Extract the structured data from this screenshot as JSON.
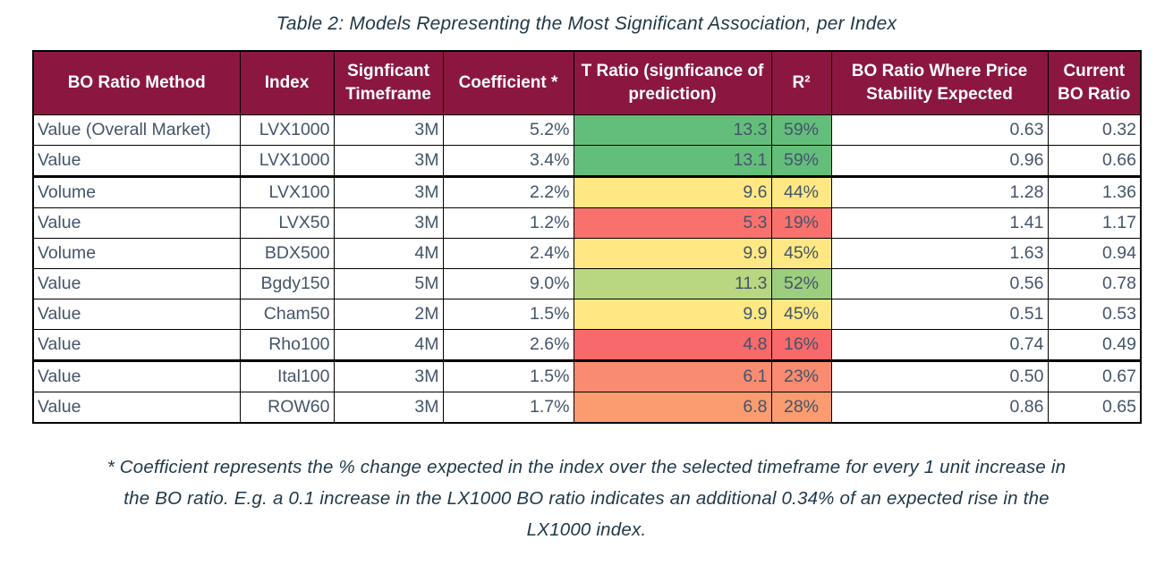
{
  "title": "Table 2: Models Representing the Most Significant Association, per Index",
  "footnote": {
    "line1": "* Coefficient represents the % change expected in the index over the selected timeframe for every 1 unit increase in",
    "line2": "the BO ratio. E.g. a 0.1 increase in the LX1000 BO ratio indicates an additional 0.34% of an expected rise in the",
    "line3": "LX1000 index."
  },
  "colors": {
    "header_bg": "#8b1740",
    "header_text": "#ffffff",
    "body_text": "#44546a",
    "title_text": "#1f3747",
    "scale_green": "#63be7b",
    "scale_yellow": "#ffe883",
    "scale_red": "#f8696b"
  },
  "table": {
    "columns": [
      {
        "label": "BO Ratio Method"
      },
      {
        "label": "Index"
      },
      {
        "label": "Signficant Timeframe"
      },
      {
        "label": "Coefficient *"
      },
      {
        "label": "T Ratio (signficance of prediction)"
      },
      {
        "label": "R²"
      },
      {
        "label": "BO Ratio Where Price Stability Expected"
      },
      {
        "label": "Current BO Ratio"
      }
    ],
    "rows": [
      {
        "method": "Value (Overall Market)",
        "index": "LVX1000",
        "timeframe": "3M",
        "coefficient": "5.2%",
        "t_ratio": "13.3",
        "t_color": "#63be7b",
        "r2": "59%",
        "r2_color": "#63be7b",
        "bo_stability": "0.63",
        "current_bo": "0.32",
        "thick_bottom": false
      },
      {
        "method": "Value",
        "index": "LVX1000",
        "timeframe": "3M",
        "coefficient": "3.4%",
        "t_ratio": "13.1",
        "t_color": "#63be7b",
        "r2": "59%",
        "r2_color": "#63be7b",
        "bo_stability": "0.96",
        "current_bo": "0.66",
        "thick_bottom": true
      },
      {
        "method": "Volume",
        "index": "LVX100",
        "timeframe": "3M",
        "coefficient": "2.2%",
        "t_ratio": "9.6",
        "t_color": "#ffe883",
        "r2": "44%",
        "r2_color": "#ffe883",
        "bo_stability": "1.28",
        "current_bo": "1.36",
        "thick_bottom": false
      },
      {
        "method": "Value",
        "index": "LVX50",
        "timeframe": "3M",
        "coefficient": "1.2%",
        "t_ratio": "5.3",
        "t_color": "#f9716d",
        "r2": "19%",
        "r2_color": "#f9716d",
        "bo_stability": "1.41",
        "current_bo": "1.17",
        "thick_bottom": false
      },
      {
        "method": "Volume",
        "index": "BDX500",
        "timeframe": "4M",
        "coefficient": "2.4%",
        "t_ratio": "9.9",
        "t_color": "#ffe883",
        "r2": "45%",
        "r2_color": "#ffe883",
        "bo_stability": "1.63",
        "current_bo": "0.94",
        "thick_bottom": false
      },
      {
        "method": "Value",
        "index": "Bgdy150",
        "timeframe": "5M",
        "coefficient": "9.0%",
        "t_ratio": "11.3",
        "t_color": "#b9d780",
        "r2": "52%",
        "r2_color": "#9cce7d",
        "bo_stability": "0.56",
        "current_bo": "0.78",
        "thick_bottom": false
      },
      {
        "method": "Value",
        "index": "Cham50",
        "timeframe": "2M",
        "coefficient": "1.5%",
        "t_ratio": "9.9",
        "t_color": "#ffe883",
        "r2": "45%",
        "r2_color": "#ffe883",
        "bo_stability": "0.51",
        "current_bo": "0.53",
        "thick_bottom": false
      },
      {
        "method": "Value",
        "index": "Rho100",
        "timeframe": "4M",
        "coefficient": "2.6%",
        "t_ratio": "4.8",
        "t_color": "#f8696b",
        "r2": "16%",
        "r2_color": "#f8696b",
        "bo_stability": "0.74",
        "current_bo": "0.49",
        "thick_bottom": true
      },
      {
        "method": "Value",
        "index": "Ital100",
        "timeframe": "3M",
        "coefficient": "1.5%",
        "t_ratio": "6.1",
        "t_color": "#f98b70",
        "r2": "23%",
        "r2_color": "#f98b70",
        "bo_stability": "0.50",
        "current_bo": "0.67",
        "thick_bottom": false
      },
      {
        "method": "Value",
        "index": "ROW60",
        "timeframe": "3M",
        "coefficient": "1.7%",
        "t_ratio": "6.8",
        "t_color": "#fa9c70",
        "r2": "28%",
        "r2_color": "#fa9c70",
        "bo_stability": "0.86",
        "current_bo": "0.65",
        "thick_bottom": false
      }
    ]
  }
}
